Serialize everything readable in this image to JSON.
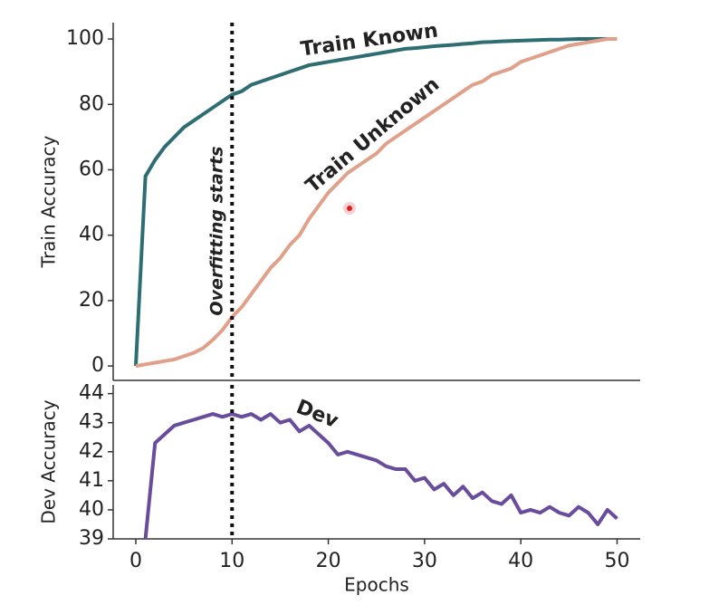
{
  "chart_data": [
    {
      "type": "line",
      "ylabel": "Train Accuracy",
      "x": [
        0,
        1,
        2,
        3,
        4,
        5,
        6,
        7,
        8,
        9,
        10,
        11,
        12,
        13,
        14,
        15,
        16,
        17,
        18,
        19,
        20,
        21,
        22,
        23,
        24,
        25,
        26,
        27,
        28,
        29,
        30,
        31,
        32,
        33,
        34,
        35,
        36,
        37,
        38,
        39,
        40,
        41,
        42,
        43,
        44,
        45,
        46,
        47,
        48,
        49,
        50
      ],
      "xlim": [
        -2.35,
        52.4
      ],
      "ylim": [
        -4.4,
        105
      ],
      "yticks": [
        0,
        20,
        40,
        60,
        80,
        100
      ],
      "vline": 10,
      "annotation": "Overfitting starts",
      "series": [
        {
          "name": "Train Known",
          "color": "#2e6e73",
          "values": [
            0,
            58,
            63,
            67,
            70,
            73,
            75,
            77,
            79,
            81,
            83,
            84,
            86,
            87,
            88,
            89,
            90,
            91,
            92,
            92.5,
            93,
            93.5,
            94,
            94.5,
            95,
            95.5,
            96,
            96.5,
            97,
            97.2,
            97.5,
            97.8,
            98,
            98.2,
            98.5,
            98.7,
            99,
            99.1,
            99.3,
            99.4,
            99.5,
            99.6,
            99.7,
            99.8,
            99.8,
            99.9,
            100,
            100,
            100,
            100,
            100
          ]
        },
        {
          "name": "Train Unknown",
          "color": "#e0a08a",
          "values": [
            0,
            0.5,
            1,
            1.5,
            2,
            3,
            4,
            5.5,
            8,
            11,
            15,
            18,
            22,
            26,
            30,
            33,
            37,
            40,
            45,
            49,
            53,
            56,
            59,
            61,
            63,
            65,
            68,
            70,
            72,
            74,
            76,
            78,
            80,
            82,
            84,
            86,
            87,
            89,
            90,
            91,
            93,
            94,
            95,
            96,
            97,
            98,
            98.5,
            99,
            99.5,
            100,
            100
          ]
        }
      ]
    },
    {
      "type": "line",
      "ylabel": "Dev Accuracy",
      "xlabel": "Epochs",
      "x": [
        1,
        2,
        3,
        4,
        5,
        6,
        7,
        8,
        9,
        10,
        11,
        12,
        13,
        14,
        15,
        16,
        17,
        18,
        19,
        20,
        21,
        22,
        23,
        24,
        25,
        26,
        27,
        28,
        29,
        30,
        31,
        32,
        33,
        34,
        35,
        36,
        37,
        38,
        39,
        40,
        41,
        42,
        43,
        44,
        45,
        46,
        47,
        48,
        49,
        50
      ],
      "xlim": [
        -2.35,
        52.4
      ],
      "xticks": [
        0,
        10,
        20,
        30,
        40,
        50
      ],
      "ylim": [
        39,
        44.3
      ],
      "yticks": [
        39,
        40,
        41,
        42,
        43,
        44
      ],
      "vline": 10,
      "series": [
        {
          "name": "Dev",
          "color": "#6a4c9c",
          "values": [
            39,
            42.3,
            42.6,
            42.9,
            43.0,
            43.1,
            43.2,
            43.3,
            43.2,
            43.3,
            43.2,
            43.3,
            43.1,
            43.3,
            43.0,
            43.1,
            42.7,
            42.9,
            42.6,
            42.3,
            41.9,
            42.0,
            41.9,
            41.8,
            41.7,
            41.5,
            41.4,
            41.4,
            41.0,
            41.1,
            40.7,
            40.9,
            40.5,
            40.8,
            40.4,
            40.6,
            40.3,
            40.2,
            40.5,
            39.9,
            40.0,
            39.9,
            40.1,
            39.9,
            39.8,
            40.1,
            39.9,
            39.5,
            40.0,
            39.7
          ]
        }
      ]
    }
  ]
}
